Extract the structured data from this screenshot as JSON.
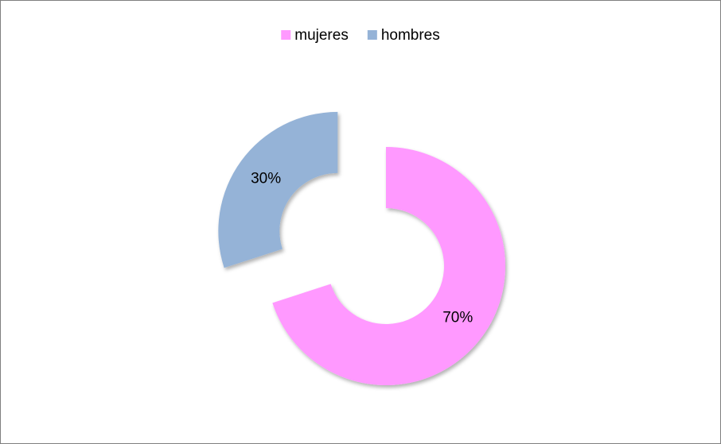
{
  "chart_data": {
    "type": "donut",
    "categories": [
      "mujeres",
      "hombres"
    ],
    "values": [
      70,
      30
    ],
    "value_labels": [
      "70%",
      "30%"
    ],
    "colors": [
      "#ff99ff",
      "#95b3d7"
    ],
    "legend": "top"
  }
}
